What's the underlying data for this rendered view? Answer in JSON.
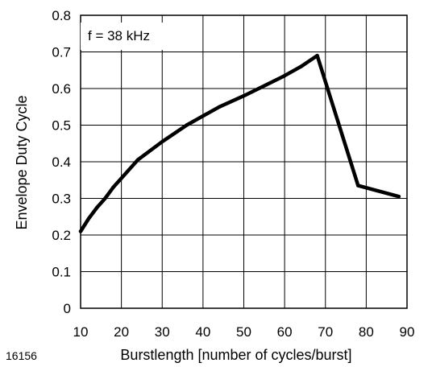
{
  "chart_data": {
    "type": "line",
    "annotation": "f = 38 kHz",
    "xlabel": "Burstlength [number of cycles/burst]",
    "ylabel": "Envelope Duty Cycle",
    "figure_id": "16156",
    "xlim": [
      10,
      90
    ],
    "ylim": [
      0,
      0.8
    ],
    "x_ticks": [
      "10",
      "20",
      "30",
      "40",
      "50",
      "60",
      "70",
      "80",
      "90"
    ],
    "y_ticks": [
      "0",
      "0.1",
      "0.2",
      "0.3",
      "0.4",
      "0.5",
      "0.6",
      "0.7",
      "0.8"
    ],
    "grid": true,
    "series": [
      {
        "x": [
          10,
          12,
          14,
          16,
          18,
          20,
          24,
          30,
          36,
          40,
          44,
          50,
          54,
          60,
          64,
          68,
          78,
          88
        ],
        "y": [
          0.21,
          0.245,
          0.275,
          0.3,
          0.33,
          0.355,
          0.405,
          0.455,
          0.5,
          0.525,
          0.55,
          0.58,
          0.602,
          0.635,
          0.66,
          0.69,
          0.335,
          0.305
        ],
        "color": "#000000"
      }
    ]
  }
}
